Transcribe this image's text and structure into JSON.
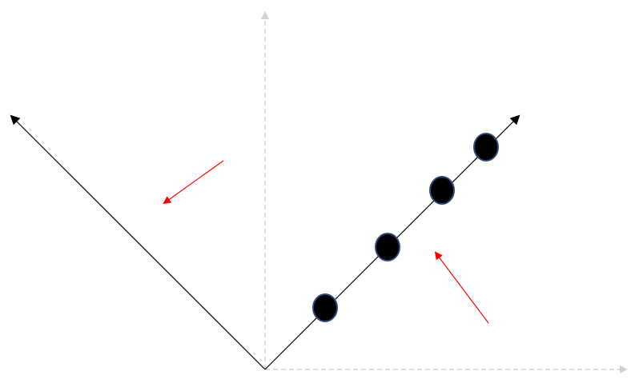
{
  "diagram": {
    "colors": {
      "background": "#ffffff",
      "reference_axes": "#d0d0d0",
      "rotated_axes": "#000000",
      "arrow_annotations": "#ff0000",
      "point_fill": "#000000",
      "point_stroke": "#2f4a7a"
    },
    "reference_axes": [
      {
        "name": "vertical-axis",
        "style": "dashed"
      },
      {
        "name": "horizontal-axis",
        "style": "dashed"
      }
    ],
    "rotated_axes": [
      {
        "name": "axis-up-left",
        "direction": "upper-left",
        "style": "solid"
      },
      {
        "name": "axis-up-right",
        "direction": "upper-right",
        "style": "solid"
      }
    ],
    "data_points": {
      "on_axis": "axis-up-right",
      "count": 4
    },
    "arrow_annotations": [
      {
        "name": "red-arrow-left",
        "points_toward": "axis-up-left"
      },
      {
        "name": "red-arrow-right",
        "points_toward": "axis-up-right"
      }
    ]
  }
}
